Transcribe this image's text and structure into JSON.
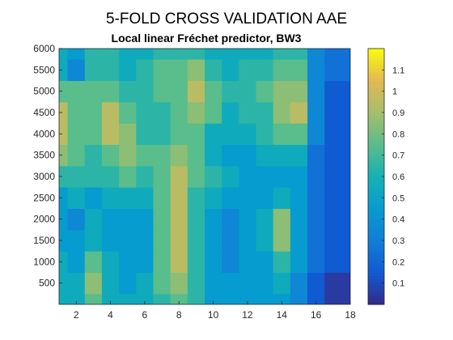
{
  "chart_data": {
    "type": "heatmap",
    "title": "5-FOLD CROSS VALIDATION AAE",
    "subtitle": "Local linear Fréchet predictor, BW3",
    "xlabel": "",
    "ylabel": "",
    "xlim": [
      1,
      18
    ],
    "ylim": [
      0,
      6000
    ],
    "xticks": [
      2,
      4,
      6,
      8,
      10,
      12,
      14,
      16,
      18
    ],
    "yticks": [
      500,
      1000,
      1500,
      2000,
      2500,
      3000,
      3500,
      4000,
      4500,
      5000,
      5500,
      6000
    ],
    "colorbar": {
      "range": [
        0,
        1.2
      ],
      "ticks": [
        0.1,
        0.2,
        0.3,
        0.4,
        0.5,
        0.6,
        0.7,
        0.8,
        0.9,
        1,
        1.1
      ],
      "colormap": "parula"
    },
    "x": [
      1,
      2,
      3,
      4,
      5,
      6,
      7,
      8,
      9,
      10,
      11,
      12,
      13,
      14,
      15,
      16,
      17,
      18
    ],
    "y": [
      0,
      500,
      1000,
      1500,
      2000,
      2500,
      3000,
      3500,
      4000,
      4500,
      5000,
      5500,
      6000
    ],
    "z": [
      [
        0.55,
        0.55,
        0.75,
        0.55,
        0.55,
        0.55,
        0.65,
        0.75,
        0.65,
        0.45,
        0.45,
        0.45,
        0.45,
        0.45,
        0.35,
        0.15,
        0.05,
        0.05
      ],
      [
        0.55,
        0.55,
        0.85,
        0.55,
        0.45,
        0.55,
        0.75,
        0.85,
        0.65,
        0.45,
        0.45,
        0.45,
        0.45,
        0.55,
        0.35,
        0.15,
        0.05,
        0.05
      ],
      [
        0.55,
        0.45,
        0.75,
        0.55,
        0.45,
        0.45,
        0.75,
        0.95,
        0.65,
        0.45,
        0.35,
        0.45,
        0.45,
        0.65,
        0.45,
        0.25,
        0.15,
        0.15
      ],
      [
        0.45,
        0.45,
        0.55,
        0.45,
        0.45,
        0.45,
        0.75,
        0.95,
        0.65,
        0.45,
        0.35,
        0.45,
        0.55,
        0.85,
        0.45,
        0.25,
        0.15,
        0.15
      ],
      [
        0.45,
        0.35,
        0.55,
        0.45,
        0.45,
        0.45,
        0.75,
        0.95,
        0.65,
        0.45,
        0.35,
        0.45,
        0.55,
        0.85,
        0.45,
        0.25,
        0.15,
        0.15
      ],
      [
        0.45,
        0.55,
        0.45,
        0.55,
        0.55,
        0.55,
        0.75,
        0.95,
        0.65,
        0.55,
        0.45,
        0.45,
        0.45,
        0.55,
        0.45,
        0.25,
        0.15,
        0.15
      ],
      [
        0.65,
        0.65,
        0.65,
        0.65,
        0.75,
        0.65,
        0.75,
        0.95,
        0.75,
        0.65,
        0.55,
        0.45,
        0.45,
        0.45,
        0.45,
        0.25,
        0.15,
        0.15
      ],
      [
        0.85,
        0.75,
        0.65,
        0.75,
        0.85,
        0.75,
        0.75,
        0.85,
        0.75,
        0.55,
        0.45,
        0.45,
        0.55,
        0.55,
        0.55,
        0.25,
        0.15,
        0.15
      ],
      [
        0.95,
        0.75,
        0.75,
        0.95,
        0.85,
        0.65,
        0.65,
        0.75,
        0.75,
        0.55,
        0.55,
        0.55,
        0.65,
        0.75,
        0.75,
        0.35,
        0.15,
        0.15
      ],
      [
        0.95,
        0.75,
        0.75,
        0.95,
        0.75,
        0.65,
        0.65,
        0.75,
        0.85,
        0.75,
        0.55,
        0.65,
        0.65,
        0.85,
        0.95,
        0.35,
        0.15,
        0.15
      ],
      [
        0.75,
        0.75,
        0.75,
        0.75,
        0.65,
        0.65,
        0.75,
        0.75,
        0.95,
        0.75,
        0.65,
        0.65,
        0.75,
        0.85,
        0.85,
        0.35,
        0.15,
        0.15
      ],
      [
        0.55,
        0.35,
        0.65,
        0.65,
        0.55,
        0.65,
        0.75,
        0.75,
        0.85,
        0.65,
        0.55,
        0.65,
        0.65,
        0.75,
        0.75,
        0.35,
        0.25,
        0.25
      ],
      [
        0.55,
        0.45,
        0.65,
        0.65,
        0.55,
        0.55,
        0.65,
        0.65,
        0.65,
        0.55,
        0.55,
        0.55,
        0.55,
        0.65,
        0.65,
        0.35,
        0.25,
        0.25
      ]
    ]
  }
}
